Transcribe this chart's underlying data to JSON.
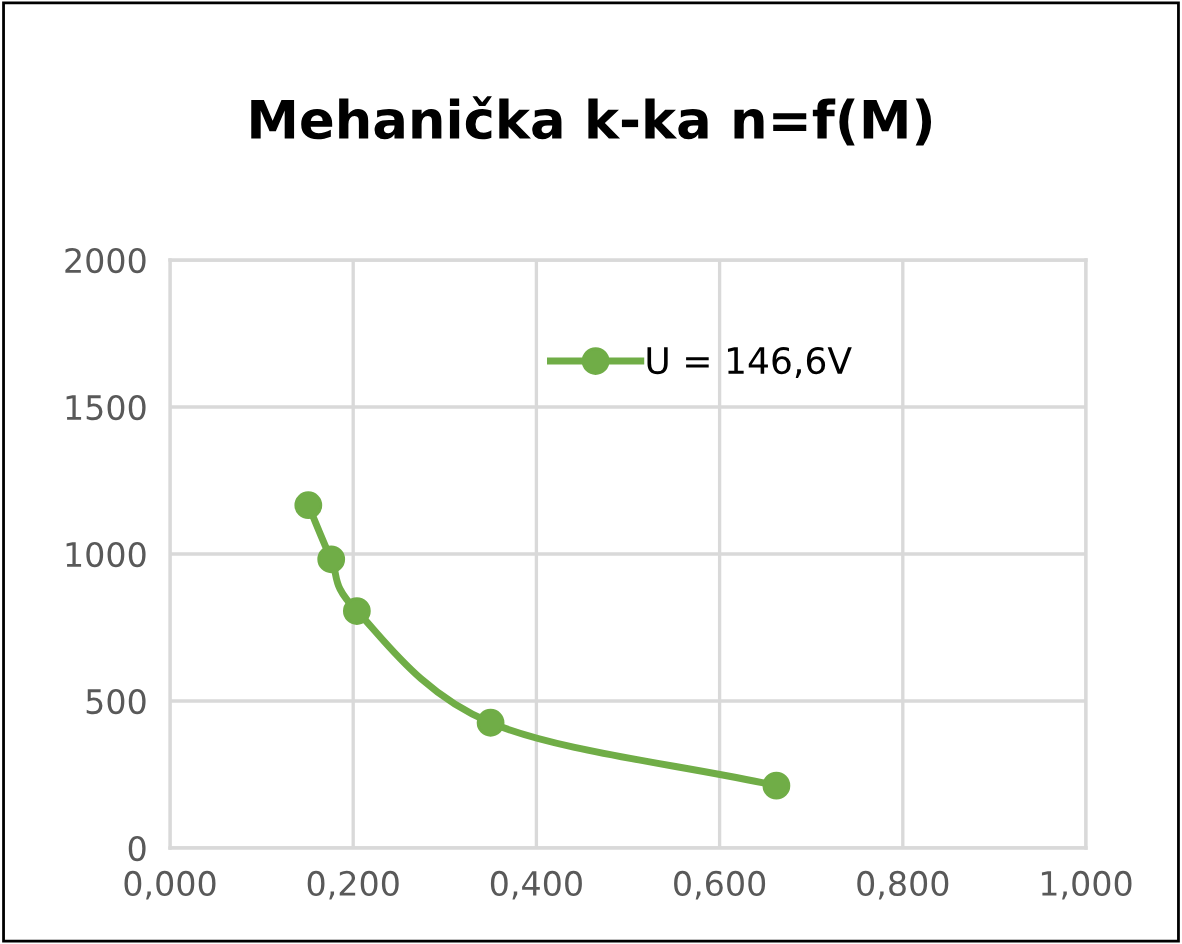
{
  "chart_data": {
    "type": "line",
    "title": "Mehanička k-ka n=f(M)",
    "x": [
      0.151,
      0.176,
      0.204,
      0.35,
      0.662
    ],
    "series": [
      {
        "name": "U = 146,6V",
        "color": "#70ad47",
        "values": [
          1166,
          982,
          806,
          426,
          212
        ]
      }
    ],
    "xlim": [
      0,
      1
    ],
    "xticks": [
      {
        "value": 0,
        "label": "0,000"
      },
      {
        "value": 0.2,
        "label": "0,200"
      },
      {
        "value": 0.4,
        "label": "0,400"
      },
      {
        "value": 0.6,
        "label": "0,600"
      },
      {
        "value": 0.8,
        "label": "0,800"
      },
      {
        "value": 1,
        "label": "1,000"
      }
    ],
    "ylim": [
      0,
      2000
    ],
    "yticks": [
      0,
      500,
      1000,
      1500,
      2000
    ],
    "grid": true,
    "legend": "top",
    "marker": "circle",
    "line_style": "solid"
  }
}
